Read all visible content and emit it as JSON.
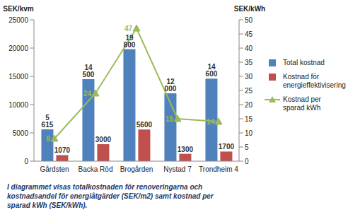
{
  "chart_data": {
    "type": "bar",
    "categories": [
      "Gårdsten",
      "Backa Röd",
      "Brogården",
      "Nystad 7",
      "Trondheim 4"
    ],
    "series": [
      {
        "name": "Total kostnad",
        "color": "#4f81bd",
        "values": [
          5615,
          14500,
          19800,
          12000,
          14600
        ],
        "value_labels": [
          "5 615",
          "14 500",
          "19 800",
          "12 000",
          "14 600"
        ]
      },
      {
        "name": "Kostnad för energieffektivisering",
        "color": "#c0504d",
        "values": [
          1070,
          3000,
          5600,
          1300,
          1700
        ]
      },
      {
        "name": "Kostnad per sparad kWh",
        "color": "#9bbb59",
        "type": "line",
        "axis": "y2",
        "marker": "triangle",
        "values": [
          8,
          24,
          47,
          15,
          14
        ]
      }
    ],
    "y_label": "SEK/kvm",
    "y2_label": "SEK/kWh",
    "ylim": [
      0,
      25000
    ],
    "yticks": [
      0,
      5000,
      10000,
      15000,
      20000,
      25000
    ],
    "y2lim": [
      0,
      50
    ],
    "y2ticks": [
      0,
      5,
      10,
      15,
      20,
      25,
      30,
      35,
      40,
      45,
      50
    ],
    "grid": false,
    "legend": "right",
    "data_labels": true,
    "caption": "I diagrammet visas totalkostnaden för renoveringarna och kostnadsandel för energiåtgärder (SEK/m2) samt kostnad per sparad kWh (SEK/kWh)."
  }
}
